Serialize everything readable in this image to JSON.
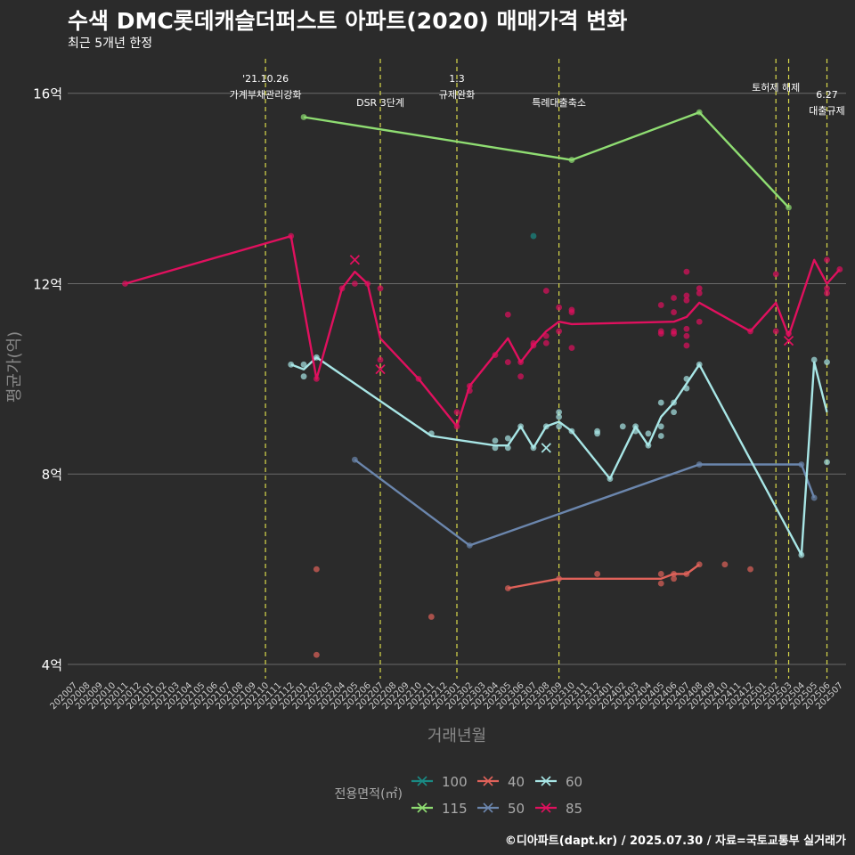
{
  "chart_data": {
    "type": "line",
    "title": "수색 DMC롯데캐슬더퍼스트 아파트(2020) 매매가격 변화",
    "subtitle": "최근 5개년 한정",
    "xlabel": "거래년월",
    "ylabel": "평균가(억)",
    "caption": "©디아파트(dapt.kr) / 2025.07.30 / 자료=국토교통부 실거래가",
    "legend_title": "전용면적(㎡)",
    "legend_position": "bottom",
    "ylim": [
      3.7,
      16.8
    ],
    "yticks": [
      4,
      8,
      12,
      16
    ],
    "ytick_labels": [
      "4억",
      "8억",
      "12억",
      "16억"
    ],
    "grid": true,
    "categories": [
      "202007",
      "202008",
      "202009",
      "202010",
      "202011",
      "202012",
      "202101",
      "202102",
      "202103",
      "202104",
      "202105",
      "202106",
      "202107",
      "202108",
      "202109",
      "202110",
      "202111",
      "202112",
      "202201",
      "202202",
      "202203",
      "202204",
      "202205",
      "202206",
      "202207",
      "202208",
      "202209",
      "202210",
      "202211",
      "202212",
      "202301",
      "202302",
      "202303",
      "202304",
      "202305",
      "202306",
      "202307",
      "202308",
      "202309",
      "202310",
      "202311",
      "202312",
      "202401",
      "202402",
      "202403",
      "202404",
      "202405",
      "202406",
      "202407",
      "202408",
      "202409",
      "202410",
      "202411",
      "202412",
      "202501",
      "202502",
      "202503",
      "202504",
      "202505",
      "202506",
      "202507"
    ],
    "events": [
      {
        "month": "202110",
        "label": "'21.10.26\n가계부채관리강화"
      },
      {
        "month": "202207",
        "label": "DSR 3단계"
      },
      {
        "month": "202301",
        "label": "1.3\n규제완화"
      },
      {
        "month": "202309",
        "label": "특례대출축소"
      },
      {
        "month": "202502",
        "label": "토허제 해제"
      },
      {
        "month": "202503",
        "label": ""
      },
      {
        "month": "202506",
        "label": "6.27\n대출규제"
      }
    ],
    "series": [
      {
        "name": "100",
        "color": "#1a8a84",
        "line": [],
        "points": [
          [
            "202307",
            13.0
          ]
        ],
        "marks": []
      },
      {
        "name": "115",
        "color": "#8fdd72",
        "line": [
          [
            "202201",
            15.5
          ],
          [
            "202310",
            14.6
          ],
          [
            "202408",
            15.6
          ],
          [
            "202503",
            13.6
          ]
        ],
        "points": [
          [
            "202201",
            15.5
          ],
          [
            "202310",
            14.6
          ],
          [
            "202408",
            15.6
          ],
          [
            "202503",
            13.6
          ]
        ],
        "marks": []
      },
      {
        "name": "40",
        "color": "#e0625a",
        "line": [
          [
            "202305",
            5.6
          ],
          [
            "202309",
            5.8
          ],
          [
            "202405",
            5.8
          ],
          [
            "202406",
            5.9
          ],
          [
            "202407",
            5.9
          ],
          [
            "202408",
            6.1
          ]
        ],
        "points": [
          [
            "202202",
            6.0
          ],
          [
            "202202",
            4.2
          ],
          [
            "202211",
            5.0
          ],
          [
            "202305",
            5.6
          ],
          [
            "202309",
            5.8
          ],
          [
            "202312",
            5.9
          ],
          [
            "202405",
            5.9
          ],
          [
            "202405",
            5.7
          ],
          [
            "202406",
            5.8
          ],
          [
            "202406",
            5.9
          ],
          [
            "202407",
            5.9
          ],
          [
            "202408",
            6.1
          ],
          [
            "202410",
            6.1
          ],
          [
            "202412",
            6.0
          ]
        ],
        "marks": []
      },
      {
        "name": "50",
        "color": "#6b86ad",
        "line": [
          [
            "202205",
            8.3
          ],
          [
            "202302",
            6.5
          ],
          [
            "202408",
            8.2
          ],
          [
            "202504",
            8.2
          ],
          [
            "202505",
            7.5
          ]
        ],
        "points": [
          [
            "202205",
            8.3
          ],
          [
            "202302",
            6.5
          ],
          [
            "202408",
            8.2
          ],
          [
            "202504",
            8.2
          ],
          [
            "202505",
            7.5
          ]
        ],
        "marks": []
      },
      {
        "name": "60",
        "color": "#a8e6e6",
        "line": [
          [
            "202112",
            10.3
          ],
          [
            "202201",
            10.2
          ],
          [
            "202202",
            10.45
          ],
          [
            "202211",
            8.8
          ],
          [
            "202304",
            8.6
          ],
          [
            "202305",
            8.6
          ],
          [
            "202306",
            9.0
          ],
          [
            "202307",
            8.55
          ],
          [
            "202308",
            9.0
          ],
          [
            "202309",
            9.1
          ],
          [
            "202310",
            8.9
          ],
          [
            "202401",
            7.9
          ],
          [
            "202403",
            9.0
          ],
          [
            "202404",
            8.6
          ],
          [
            "202405",
            9.2
          ],
          [
            "202406",
            9.5
          ],
          [
            "202407",
            9.9
          ],
          [
            "202408",
            10.3
          ],
          [
            "202504",
            6.3
          ],
          [
            "202505",
            10.35
          ],
          [
            "202506",
            9.3
          ]
        ],
        "points": [
          [
            "202112",
            10.3
          ],
          [
            "202201",
            10.3
          ],
          [
            "202201",
            10.05
          ],
          [
            "202202",
            10.45
          ],
          [
            "202211",
            8.85
          ],
          [
            "202304",
            8.7
          ],
          [
            "202304",
            8.55
          ],
          [
            "202305",
            8.75
          ],
          [
            "202305",
            8.55
          ],
          [
            "202306",
            9.0
          ],
          [
            "202307",
            8.55
          ],
          [
            "202308",
            9.0
          ],
          [
            "202309",
            9.3
          ],
          [
            "202309",
            9.2
          ],
          [
            "202309",
            9.0
          ],
          [
            "202310",
            8.9
          ],
          [
            "202312",
            8.85
          ],
          [
            "202312",
            8.9
          ],
          [
            "202401",
            7.9
          ],
          [
            "202402",
            9.0
          ],
          [
            "202403",
            9.0
          ],
          [
            "202403",
            8.9
          ],
          [
            "202404",
            8.85
          ],
          [
            "202404",
            8.6
          ],
          [
            "202405",
            9.0
          ],
          [
            "202405",
            8.8
          ],
          [
            "202405",
            9.5
          ],
          [
            "202406",
            9.3
          ],
          [
            "202406",
            9.5
          ],
          [
            "202407",
            9.8
          ],
          [
            "202407",
            10.0
          ],
          [
            "202408",
            10.3
          ],
          [
            "202504",
            6.3
          ],
          [
            "202505",
            10.4
          ],
          [
            "202506",
            10.35
          ],
          [
            "202506",
            8.25
          ]
        ],
        "marks": [
          [
            "202308",
            8.55
          ]
        ]
      },
      {
        "name": "85",
        "color": "#e0105e",
        "line": [
          [
            "202011",
            12.0
          ],
          [
            "202112",
            13.0
          ],
          [
            "202202",
            10.0
          ],
          [
            "202204",
            11.9
          ],
          [
            "202205",
            12.25
          ],
          [
            "202206",
            12.0
          ],
          [
            "202207",
            10.85
          ],
          [
            "202210",
            10.0
          ],
          [
            "202301",
            9.0
          ],
          [
            "202302",
            9.85
          ],
          [
            "202305",
            10.85
          ],
          [
            "202306",
            10.35
          ],
          [
            "202307",
            10.7
          ],
          [
            "202308",
            11.0
          ],
          [
            "202309",
            11.2
          ],
          [
            "202310",
            11.15
          ],
          [
            "202406",
            11.2
          ],
          [
            "202407",
            11.3
          ],
          [
            "202408",
            11.6
          ],
          [
            "202412",
            11.0
          ],
          [
            "202502",
            11.6
          ],
          [
            "202503",
            10.9
          ],
          [
            "202505",
            12.5
          ],
          [
            "202506",
            12.0
          ],
          [
            "202507",
            12.3
          ]
        ],
        "points": [
          [
            "202011",
            12.0
          ],
          [
            "202112",
            13.0
          ],
          [
            "202202",
            10.0
          ],
          [
            "202204",
            11.9
          ],
          [
            "202205",
            12.0
          ],
          [
            "202206",
            12.0
          ],
          [
            "202207",
            11.9
          ],
          [
            "202207",
            10.4
          ],
          [
            "202210",
            10.0
          ],
          [
            "202301",
            9.3
          ],
          [
            "202301",
            9.0
          ],
          [
            "202302",
            9.85
          ],
          [
            "202302",
            9.75
          ],
          [
            "202304",
            10.5
          ],
          [
            "202305",
            11.35
          ],
          [
            "202305",
            10.35
          ],
          [
            "202306",
            10.35
          ],
          [
            "202306",
            10.05
          ],
          [
            "202307",
            10.75
          ],
          [
            "202307",
            10.7
          ],
          [
            "202308",
            11.85
          ],
          [
            "202308",
            10.9
          ],
          [
            "202308",
            10.75
          ],
          [
            "202309",
            11.5
          ],
          [
            "202309",
            11.0
          ],
          [
            "202310",
            11.45
          ],
          [
            "202310",
            11.4
          ],
          [
            "202310",
            10.65
          ],
          [
            "202405",
            11.55
          ],
          [
            "202405",
            11.0
          ],
          [
            "202405",
            10.95
          ],
          [
            "202406",
            11.7
          ],
          [
            "202406",
            11.4
          ],
          [
            "202406",
            11.0
          ],
          [
            "202406",
            10.95
          ],
          [
            "202407",
            12.25
          ],
          [
            "202407",
            11.75
          ],
          [
            "202407",
            11.65
          ],
          [
            "202407",
            11.05
          ],
          [
            "202407",
            10.9
          ],
          [
            "202407",
            10.7
          ],
          [
            "202408",
            11.9
          ],
          [
            "202408",
            11.8
          ],
          [
            "202408",
            11.2
          ],
          [
            "202412",
            11.0
          ],
          [
            "202502",
            12.2
          ],
          [
            "202502",
            11.0
          ],
          [
            "202503",
            10.95
          ],
          [
            "202506",
            12.5
          ],
          [
            "202506",
            11.9
          ],
          [
            "202506",
            11.8
          ],
          [
            "202507",
            12.3
          ]
        ],
        "marks": [
          [
            "202205",
            12.5
          ],
          [
            "202207",
            10.2
          ],
          [
            "202503",
            10.8
          ]
        ]
      }
    ]
  }
}
